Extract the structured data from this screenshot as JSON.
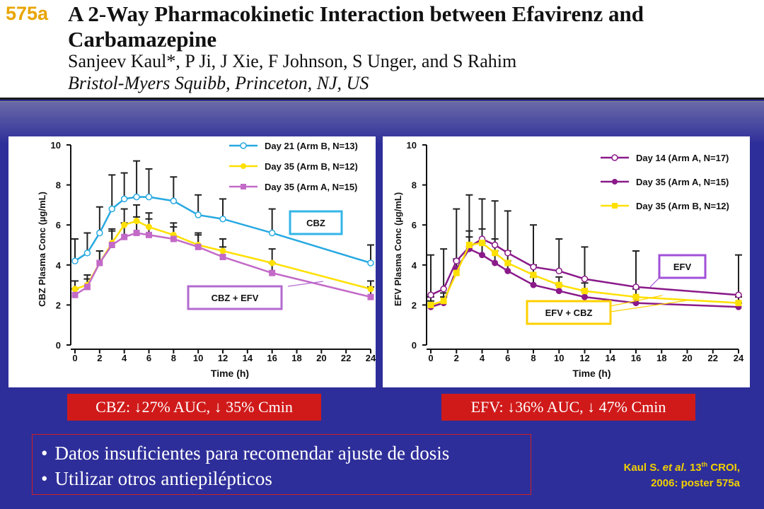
{
  "header": {
    "poster_number": "575a",
    "title": "A 2-Way Pharmacokinetic Interaction between Efavirenz and Carbamazepine",
    "authors": "Sanjeev Kaul*, P Ji, J Xie, F Johnson, S Unger, and S Rahim",
    "affiliation": "Bristol-Myers Squibb, Princeton, NJ, US"
  },
  "chart_data": [
    {
      "type": "line",
      "ylabel": "CBZ Plasma Conc (µg/mL)",
      "xlabel": "Time (h)",
      "xlim": [
        0,
        24
      ],
      "ylim": [
        0,
        10
      ],
      "xticks": [
        0,
        2,
        4,
        6,
        8,
        10,
        12,
        14,
        16,
        18,
        20,
        22,
        24
      ],
      "yticks": [
        0,
        2,
        4,
        6,
        8,
        10
      ],
      "grid": false,
      "legend": "top-right",
      "series": [
        {
          "name": "Day 21 (Arm B, N=13)",
          "color": "#27a9e1",
          "marker": "open-circle",
          "x": [
            0,
            1,
            2,
            3,
            4,
            5,
            6,
            8,
            10,
            12,
            16,
            24
          ],
          "y": [
            4.2,
            4.6,
            5.6,
            6.8,
            7.3,
            7.4,
            7.4,
            7.2,
            6.5,
            6.3,
            5.6,
            4.1
          ],
          "err": [
            1.1,
            1.0,
            1.3,
            1.7,
            1.3,
            1.8,
            1.4,
            1.2,
            1.0,
            1.0,
            1.2,
            0.9
          ]
        },
        {
          "name": "Day 35 (Arm B, N=12)",
          "color": "#ffe000",
          "marker": "filled-circle",
          "x": [
            0,
            1,
            2,
            3,
            4,
            5,
            6,
            8,
            10,
            12,
            16,
            24
          ],
          "y": [
            2.8,
            3.0,
            4.1,
            5.1,
            6.0,
            6.2,
            5.9,
            5.5,
            5.0,
            4.7,
            4.1,
            2.8
          ],
          "err": [
            0.4,
            0.5,
            0.6,
            0.7,
            0.8,
            0.8,
            0.7,
            0.6,
            0.6,
            0.6,
            0.7,
            0.4
          ]
        },
        {
          "name": "Day 35 (Arm A, N=15)",
          "color": "#c36ac8",
          "marker": "filled-square",
          "x": [
            0,
            1,
            2,
            3,
            4,
            5,
            6,
            8,
            10,
            12,
            16,
            24
          ],
          "y": [
            2.5,
            2.9,
            4.1,
            5.0,
            5.4,
            5.6,
            5.5,
            5.3,
            4.9,
            4.4,
            3.6,
            2.4
          ],
          "err": [
            0.3,
            0.4,
            0.6,
            0.7,
            0.7,
            0.8,
            0.8,
            0.6,
            0.6,
            0.5,
            0.5,
            0.5
          ]
        }
      ],
      "annotations": [
        {
          "text": "CBZ",
          "border_color": "#33b5e8"
        },
        {
          "text": "CBZ + EFV",
          "border_color": "#b36ad0"
        }
      ]
    },
    {
      "type": "line",
      "ylabel": "EFV Plasma Conc (µg/mL)",
      "xlabel": "Time (h)",
      "xlim": [
        0,
        24
      ],
      "ylim": [
        0,
        10
      ],
      "xticks": [
        0,
        2,
        4,
        6,
        8,
        10,
        12,
        14,
        16,
        18,
        20,
        22,
        24
      ],
      "yticks": [
        0,
        2,
        4,
        6,
        8,
        10
      ],
      "grid": false,
      "legend": "top-right",
      "series": [
        {
          "name": "Day 14 (Arm A, N=17)",
          "color": "#8a1a8a",
          "marker": "open-circle",
          "x": [
            0,
            1,
            2,
            3,
            4,
            5,
            6,
            8,
            10,
            12,
            16,
            24
          ],
          "y": [
            2.5,
            2.8,
            4.2,
            4.9,
            5.3,
            5.0,
            4.6,
            3.9,
            3.7,
            3.3,
            2.9,
            2.5
          ],
          "err": [
            2.0,
            2.0,
            2.6,
            2.6,
            2.0,
            2.2,
            2.1,
            2.1,
            1.6,
            1.6,
            1.8,
            2.0
          ]
        },
        {
          "name": "Day 35 (Arm A, N=15)",
          "color": "#8a1a8a",
          "marker": "filled-circle",
          "x": [
            0,
            1,
            2,
            3,
            4,
            5,
            6,
            8,
            10,
            12,
            16,
            24
          ],
          "y": [
            1.9,
            2.1,
            3.8,
            4.8,
            4.5,
            4.1,
            3.7,
            3.0,
            2.7,
            2.4,
            2.1,
            1.9
          ],
          "err": [
            0.3,
            0.3,
            0.5,
            0.6,
            0.6,
            0.6,
            0.5,
            0.4,
            0.3,
            0.3,
            0.3,
            0.2
          ]
        },
        {
          "name": "Day 35 (Arm B, N=12)",
          "color": "#ffe000",
          "marker": "filled-square",
          "x": [
            0,
            1,
            2,
            3,
            4,
            5,
            6,
            8,
            10,
            12,
            16,
            24
          ],
          "y": [
            2.0,
            2.2,
            3.6,
            5.0,
            5.1,
            4.6,
            4.1,
            3.5,
            3.0,
            2.7,
            2.4,
            2.1
          ],
          "err": [
            0.4,
            0.4,
            0.6,
            0.7,
            0.7,
            0.7,
            0.6,
            0.5,
            0.4,
            0.4,
            0.4,
            0.3
          ]
        }
      ],
      "annotations": [
        {
          "text": "EFV",
          "border_color": "#a050d8"
        },
        {
          "text": "EFV + CBZ",
          "border_color": "#ffd000"
        }
      ]
    }
  ],
  "results": {
    "cbz": "CBZ: ↓27% AUC, ↓ 35% Cmin",
    "efv": "EFV: ↓36% AUC, ↓ 47% Cmin"
  },
  "conclusions": [
    "Datos insuficientes para recomendar ajuste de dosis",
    "Utilizar otros antiepilépticos"
  ],
  "citation": {
    "line1_prefix": "Kaul S. ",
    "line1_etal": "et al.",
    "line1_num": " 13",
    "line1_sup": "th",
    "line1_suffix": " CROI,",
    "line2": "2006: poster 575a"
  }
}
